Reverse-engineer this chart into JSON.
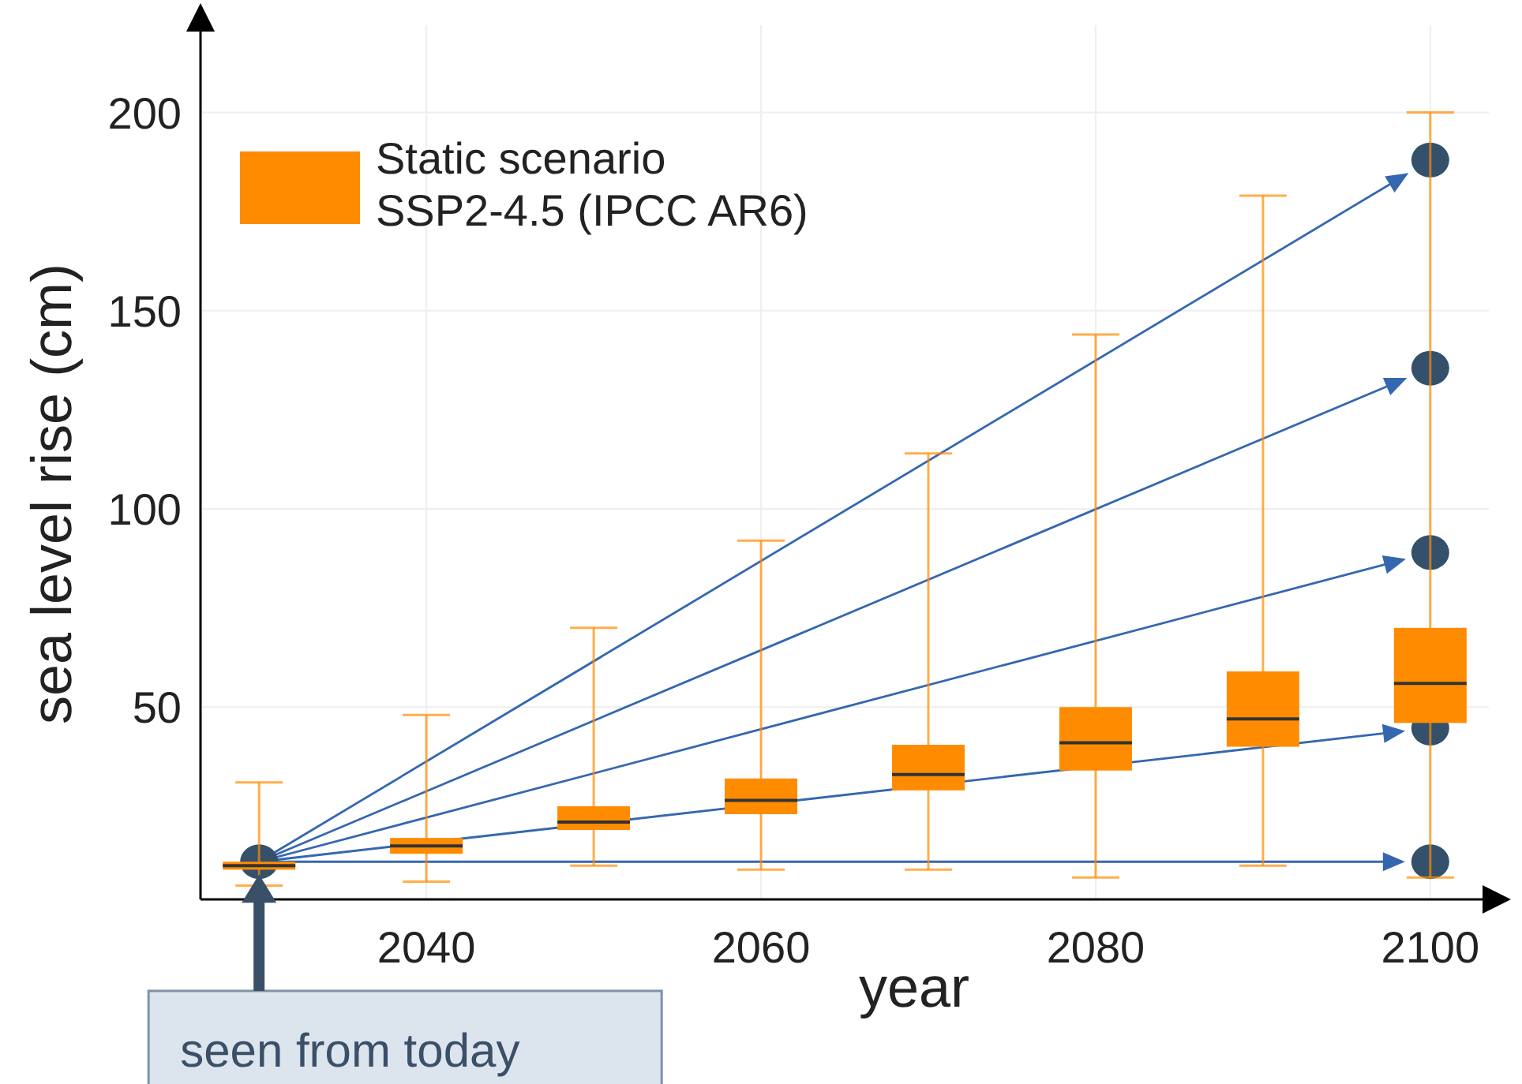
{
  "chart_data": {
    "type": "box",
    "xlabel": "year",
    "ylabel": "sea level rise (cm)",
    "xlim": [
      2026.5,
      2103.5
    ],
    "ylim": [
      1.5,
      222
    ],
    "xticks": [
      2040,
      2060,
      2080,
      2100
    ],
    "yticks": [
      50,
      100,
      150,
      200
    ],
    "grid": true,
    "legend": "top left",
    "annotations": [
      "seen from today"
    ],
    "series": [
      {
        "name": "Static scenario SSP2-4.5 (IPCC AR6)",
        "color": "#ff8c00",
        "x": [
          2030,
          2040,
          2050,
          2060,
          2070,
          2080,
          2090,
          2100
        ],
        "boxes": [
          {
            "low": 5,
            "q1": 9,
            "median": 10,
            "q3": 11,
            "high": 31
          },
          {
            "low": 6,
            "q1": 13,
            "median": 15,
            "q3": 17,
            "high": 48
          },
          {
            "low": 10,
            "q1": 19,
            "median": 21,
            "q3": 25,
            "high": 70
          },
          {
            "low": 9,
            "q1": 23,
            "median": 26.5,
            "q3": 32,
            "high": 92
          },
          {
            "low": 9,
            "q1": 29,
            "median": 33,
            "q3": 40.5,
            "high": 114
          },
          {
            "low": 7,
            "q1": 34,
            "median": 41,
            "q3": 50,
            "high": 144
          },
          {
            "low": 10,
            "q1": 40,
            "median": 47,
            "q3": 59,
            "high": 179
          },
          {
            "low": 7,
            "q1": 46,
            "median": 56,
            "q3": 70,
            "high": 200
          }
        ]
      },
      {
        "type": "scatter",
        "color": "#34506b",
        "marker": "circle",
        "x": [
          2030,
          2100,
          2100,
          2100,
          2100,
          2100
        ],
        "values": [
          11,
          188,
          135.5,
          89,
          44.7,
          11
        ]
      }
    ]
  }
}
